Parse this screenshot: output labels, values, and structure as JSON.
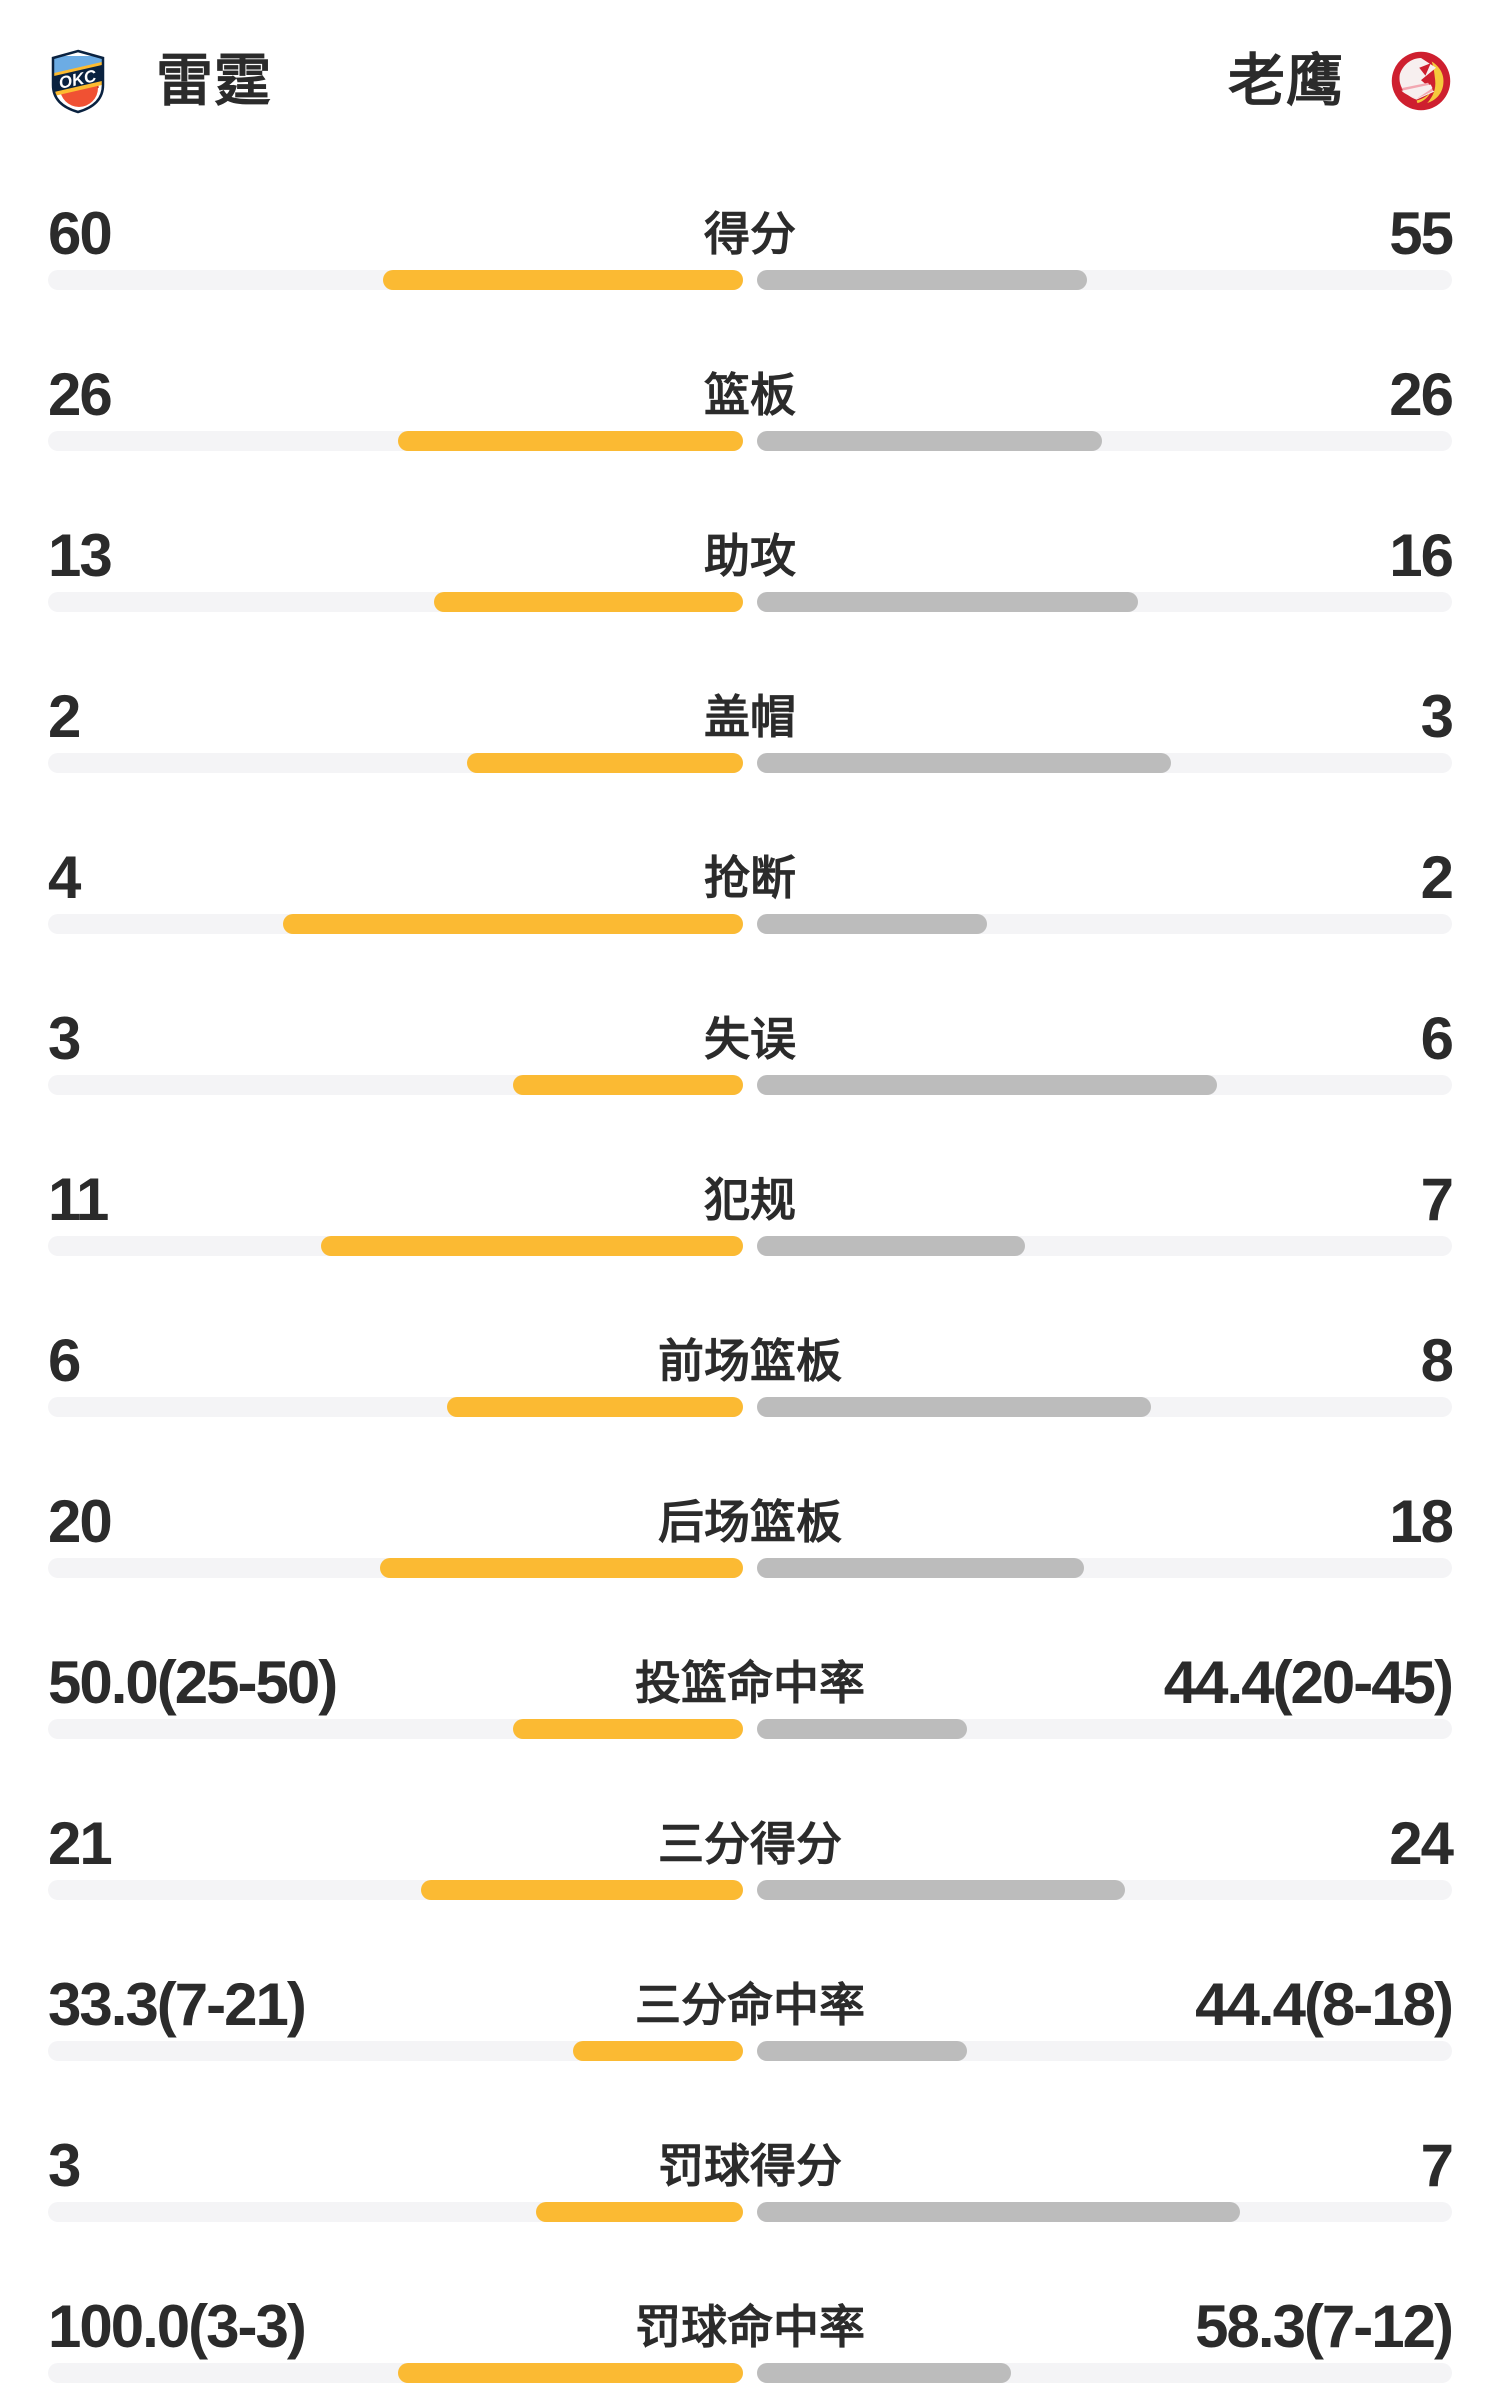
{
  "header": {
    "home_team": "雷霆",
    "away_team": "老鹰",
    "home_logo": "okc-thunder-logo",
    "away_logo": "atlanta-hawks-logo"
  },
  "colors": {
    "home_bar": "#FBBA33",
    "away_bar": "#BCBCBC",
    "track": "#F4F4F6",
    "text": "#2B2B2B",
    "hawks_red": "#CE1F2F",
    "hawks_yellow": "#F5C93C",
    "okc_blue": "#6CACE4",
    "okc_orange": "#F05133",
    "okc_navy": "#0A2240"
  },
  "stats": {
    "rows": [
      {
        "home": "60",
        "label": "得分",
        "away": "55",
        "home_pct": 51.8,
        "away_pct": 47.5
      },
      {
        "home": "26",
        "label": "篮板",
        "away": "26",
        "home_pct": 49.6,
        "away_pct": 49.6
      },
      {
        "home": "13",
        "label": "助攻",
        "away": "16",
        "home_pct": 44.5,
        "away_pct": 54.8
      },
      {
        "home": "2",
        "label": "盖帽",
        "away": "3",
        "home_pct": 39.7,
        "away_pct": 59.6
      },
      {
        "home": "4",
        "label": "抢断",
        "away": "2",
        "home_pct": 66.2,
        "away_pct": 33.1
      },
      {
        "home": "3",
        "label": "失误",
        "away": "6",
        "home_pct": 33.1,
        "away_pct": 66.2
      },
      {
        "home": "11",
        "label": "犯规",
        "away": "7",
        "home_pct": 60.7,
        "away_pct": 38.6
      },
      {
        "home": "6",
        "label": "前场篮板",
        "away": "8",
        "home_pct": 42.6,
        "away_pct": 56.7
      },
      {
        "home": "20",
        "label": "后场篮板",
        "away": "18",
        "home_pct": 52.2,
        "away_pct": 47.1
      },
      {
        "home": "50.0(25-50)",
        "label": "投篮命中率",
        "away": "44.4(20-45)",
        "home_pct": 33.1,
        "away_pct": 30.2
      },
      {
        "home": "21",
        "label": "三分得分",
        "away": "24",
        "home_pct": 46.3,
        "away_pct": 52.9
      },
      {
        "home": "33.3(7-21)",
        "label": "三分命中率",
        "away": "44.4(8-18)",
        "home_pct": 24.5,
        "away_pct": 30.2
      },
      {
        "home": "3",
        "label": "罚球得分",
        "away": "7",
        "home_pct": 29.8,
        "away_pct": 69.5
      },
      {
        "home": "100.0(3-3)",
        "label": "罚球命中率",
        "away": "58.3(7-12)",
        "home_pct": 49.6,
        "away_pct": 36.5
      }
    ]
  },
  "chart_data": {
    "type": "bar",
    "legend": [
      "雷霆",
      "老鹰"
    ],
    "legend_position": "header-left-right",
    "categories": [
      "得分",
      "篮板",
      "助攻",
      "盖帽",
      "抢断",
      "失误",
      "犯规",
      "前场篮板",
      "后场篮板",
      "投篮命中率",
      "三分得分",
      "三分命中率",
      "罚球得分",
      "罚球命中率"
    ],
    "series": [
      {
        "name": "雷霆",
        "values": [
          60,
          26,
          13,
          2,
          4,
          3,
          11,
          6,
          20,
          50.0,
          21,
          33.3,
          3,
          100.0
        ]
      },
      {
        "name": "老鹰",
        "values": [
          55,
          26,
          16,
          3,
          2,
          6,
          7,
          8,
          18,
          44.4,
          24,
          44.4,
          7,
          58.3
        ]
      }
    ],
    "value_annotations": {
      "投篮命中率": [
        "50.0(25-50)",
        "44.4(20-45)"
      ],
      "三分命中率": [
        "33.3(7-21)",
        "44.4(8-18)"
      ],
      "罚球命中率": [
        "100.0(3-3)",
        "58.3(7-12)"
      ]
    }
  }
}
